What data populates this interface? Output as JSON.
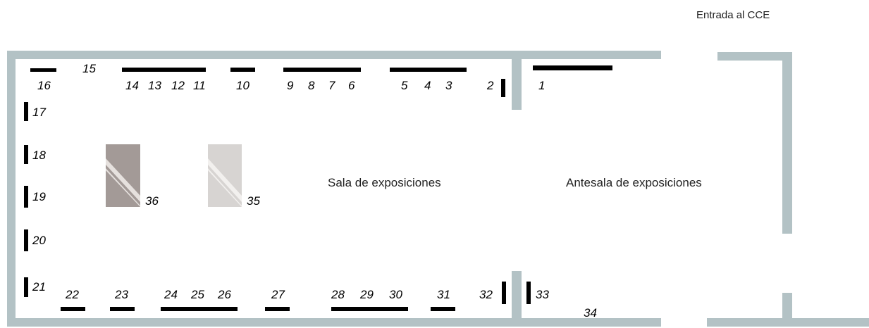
{
  "labels": {
    "entrance": "Entrada al CCE",
    "main_room": "Sala de exposiciones",
    "antechamber": "Antesala de exposiciones"
  },
  "colors": {
    "wall": "#b3c2c5",
    "panel": "#000000",
    "pedestal_36": "#a39a97",
    "pedestal_35": "#d7d4d2"
  },
  "exhibits": {
    "n1": "1",
    "n2": "2",
    "n3": "3",
    "n4": "4",
    "n5": "5",
    "n6": "6",
    "n7": "7",
    "n8": "8",
    "n9": "9",
    "n10": "10",
    "n11": "11",
    "n12": "12",
    "n13": "13",
    "n14": "14",
    "n15": "15",
    "n16": "16",
    "n17": "17",
    "n18": "18",
    "n19": "19",
    "n20": "20",
    "n21": "21",
    "n22": "22",
    "n23": "23",
    "n24": "24",
    "n25": "25",
    "n26": "26",
    "n27": "27",
    "n28": "28",
    "n29": "29",
    "n30": "30",
    "n31": "31",
    "n32": "32",
    "n33": "33",
    "n34": "34",
    "n35": "35",
    "n36": "36"
  }
}
